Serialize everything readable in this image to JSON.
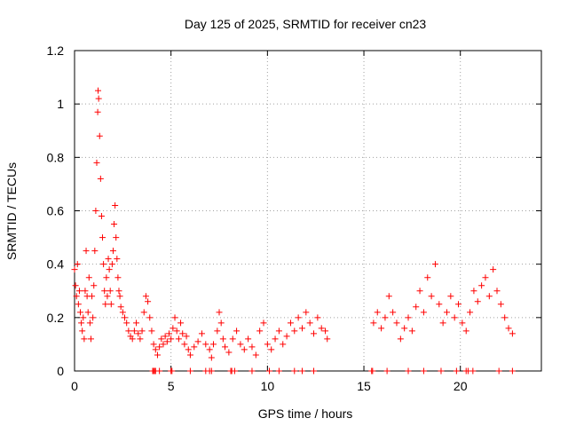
{
  "chart_data": {
    "type": "scatter",
    "title": "Day 125 of 2025, SRMTID for receiver cn23",
    "xlabel": "GPS time / hours",
    "ylabel": "SRMTID / TECUs",
    "xlim": [
      0,
      24.2
    ],
    "ylim": [
      0,
      1.2
    ],
    "xticks": [
      0,
      5,
      10,
      15,
      20
    ],
    "xtick_labels": [
      "0",
      "5",
      "10",
      "15",
      "20"
    ],
    "yticks": [
      0,
      0.2,
      0.4,
      0.6,
      0.8,
      1,
      1.2
    ],
    "ytick_labels": [
      "0",
      "0.2",
      "0.4",
      "0.6",
      "0.8",
      "1",
      "1.2"
    ],
    "grid": true,
    "marker": "+",
    "color": "#ff0000",
    "series": [
      {
        "name": "SRMTID",
        "points": [
          [
            0.0,
            0.38
          ],
          [
            0.05,
            0.32
          ],
          [
            0.1,
            0.28
          ],
          [
            0.15,
            0.4
          ],
          [
            0.2,
            0.25
          ],
          [
            0.25,
            0.3
          ],
          [
            0.3,
            0.22
          ],
          [
            0.35,
            0.18
          ],
          [
            0.4,
            0.15
          ],
          [
            0.45,
            0.2
          ],
          [
            0.5,
            0.12
          ],
          [
            0.55,
            0.3
          ],
          [
            0.6,
            0.45
          ],
          [
            0.65,
            0.28
          ],
          [
            0.7,
            0.22
          ],
          [
            0.75,
            0.35
          ],
          [
            0.8,
            0.18
          ],
          [
            0.85,
            0.12
          ],
          [
            0.9,
            0.28
          ],
          [
            0.95,
            0.2
          ],
          [
            1.0,
            0.32
          ],
          [
            1.05,
            0.45
          ],
          [
            1.1,
            0.6
          ],
          [
            1.15,
            0.78
          ],
          [
            1.2,
            0.97
          ],
          [
            1.22,
            1.05
          ],
          [
            1.25,
            1.02
          ],
          [
            1.3,
            0.88
          ],
          [
            1.35,
            0.72
          ],
          [
            1.4,
            0.58
          ],
          [
            1.45,
            0.5
          ],
          [
            1.5,
            0.4
          ],
          [
            1.55,
            0.3
          ],
          [
            1.6,
            0.25
          ],
          [
            1.65,
            0.35
          ],
          [
            1.7,
            0.28
          ],
          [
            1.75,
            0.42
          ],
          [
            1.8,
            0.38
          ],
          [
            1.85,
            0.3
          ],
          [
            1.9,
            0.25
          ],
          [
            1.95,
            0.4
          ],
          [
            2.0,
            0.45
          ],
          [
            2.05,
            0.55
          ],
          [
            2.1,
            0.62
          ],
          [
            2.15,
            0.5
          ],
          [
            2.2,
            0.42
          ],
          [
            2.25,
            0.35
          ],
          [
            2.3,
            0.3
          ],
          [
            2.35,
            0.28
          ],
          [
            2.4,
            0.24
          ],
          [
            2.5,
            0.22
          ],
          [
            2.6,
            0.2
          ],
          [
            2.7,
            0.18
          ],
          [
            2.8,
            0.15
          ],
          [
            2.9,
            0.13
          ],
          [
            3.0,
            0.12
          ],
          [
            3.1,
            0.15
          ],
          [
            3.2,
            0.18
          ],
          [
            3.3,
            0.14
          ],
          [
            3.4,
            0.12
          ],
          [
            3.5,
            0.15
          ],
          [
            3.6,
            0.22
          ],
          [
            3.7,
            0.28
          ],
          [
            3.8,
            0.26
          ],
          [
            3.9,
            0.2
          ],
          [
            4.0,
            0.15
          ],
          [
            4.1,
            0.1
          ],
          [
            4.2,
            0.08
          ],
          [
            4.3,
            0.06
          ],
          [
            4.4,
            0.09
          ],
          [
            4.5,
            0.12
          ],
          [
            4.6,
            0.1
          ],
          [
            4.7,
            0.13
          ],
          [
            4.8,
            0.11
          ],
          [
            4.9,
            0.14
          ],
          [
            5.0,
            0.12
          ],
          [
            5.1,
            0.16
          ],
          [
            5.2,
            0.2
          ],
          [
            5.3,
            0.15
          ],
          [
            5.4,
            0.12
          ],
          [
            5.5,
            0.18
          ],
          [
            5.6,
            0.14
          ],
          [
            5.7,
            0.1
          ],
          [
            5.8,
            0.13
          ],
          [
            5.9,
            0.08
          ],
          [
            6.0,
            0.06
          ],
          [
            6.2,
            0.09
          ],
          [
            6.4,
            0.11
          ],
          [
            6.6,
            0.14
          ],
          [
            6.8,
            0.1
          ],
          [
            7.0,
            0.08
          ],
          [
            7.1,
            0.05
          ],
          [
            7.2,
            0.1
          ],
          [
            7.4,
            0.15
          ],
          [
            7.5,
            0.22
          ],
          [
            7.6,
            0.18
          ],
          [
            7.7,
            0.12
          ],
          [
            7.8,
            0.09
          ],
          [
            8.0,
            0.07
          ],
          [
            8.2,
            0.12
          ],
          [
            8.4,
            0.15
          ],
          [
            8.6,
            0.1
          ],
          [
            8.8,
            0.08
          ],
          [
            9.0,
            0.12
          ],
          [
            9.2,
            0.09
          ],
          [
            9.4,
            0.06
          ],
          [
            9.6,
            0.15
          ],
          [
            9.8,
            0.18
          ],
          [
            10.0,
            0.1
          ],
          [
            10.2,
            0.08
          ],
          [
            10.4,
            0.12
          ],
          [
            10.6,
            0.15
          ],
          [
            10.8,
            0.1
          ],
          [
            11.0,
            0.13
          ],
          [
            11.2,
            0.18
          ],
          [
            11.4,
            0.15
          ],
          [
            11.6,
            0.2
          ],
          [
            11.8,
            0.16
          ],
          [
            12.0,
            0.22
          ],
          [
            12.2,
            0.18
          ],
          [
            12.4,
            0.14
          ],
          [
            12.6,
            0.2
          ],
          [
            12.8,
            0.16
          ],
          [
            13.0,
            0.15
          ],
          [
            13.1,
            0.12
          ],
          [
            15.5,
            0.18
          ],
          [
            15.7,
            0.22
          ],
          [
            15.9,
            0.16
          ],
          [
            16.1,
            0.2
          ],
          [
            16.3,
            0.28
          ],
          [
            16.5,
            0.22
          ],
          [
            16.7,
            0.18
          ],
          [
            16.9,
            0.12
          ],
          [
            17.1,
            0.16
          ],
          [
            17.3,
            0.2
          ],
          [
            17.5,
            0.15
          ],
          [
            17.7,
            0.24
          ],
          [
            17.9,
            0.3
          ],
          [
            18.1,
            0.22
          ],
          [
            18.3,
            0.35
          ],
          [
            18.5,
            0.28
          ],
          [
            18.7,
            0.4
          ],
          [
            18.9,
            0.25
          ],
          [
            19.1,
            0.18
          ],
          [
            19.3,
            0.22
          ],
          [
            19.5,
            0.28
          ],
          [
            19.7,
            0.2
          ],
          [
            19.9,
            0.25
          ],
          [
            20.1,
            0.18
          ],
          [
            20.3,
            0.15
          ],
          [
            20.5,
            0.22
          ],
          [
            20.7,
            0.3
          ],
          [
            20.9,
            0.26
          ],
          [
            21.1,
            0.32
          ],
          [
            21.3,
            0.35
          ],
          [
            21.5,
            0.28
          ],
          [
            21.7,
            0.38
          ],
          [
            21.9,
            0.3
          ],
          [
            22.1,
            0.25
          ],
          [
            22.3,
            0.2
          ],
          [
            22.5,
            0.16
          ],
          [
            22.7,
            0.14
          ]
        ]
      }
    ],
    "zero_points_x": [
      4.05,
      4.1,
      4.15,
      4.2,
      4.4,
      5.0,
      5.05,
      6.0,
      6.8,
      7.0,
      7.1,
      8.1,
      8.15,
      8.3,
      9.2,
      10.1,
      10.6,
      11.4,
      11.8,
      12.4,
      15.4,
      15.45,
      16.2,
      17.3,
      18.1,
      19.0,
      19.8,
      20.3,
      20.4,
      20.65,
      22.0,
      22.7
    ]
  }
}
